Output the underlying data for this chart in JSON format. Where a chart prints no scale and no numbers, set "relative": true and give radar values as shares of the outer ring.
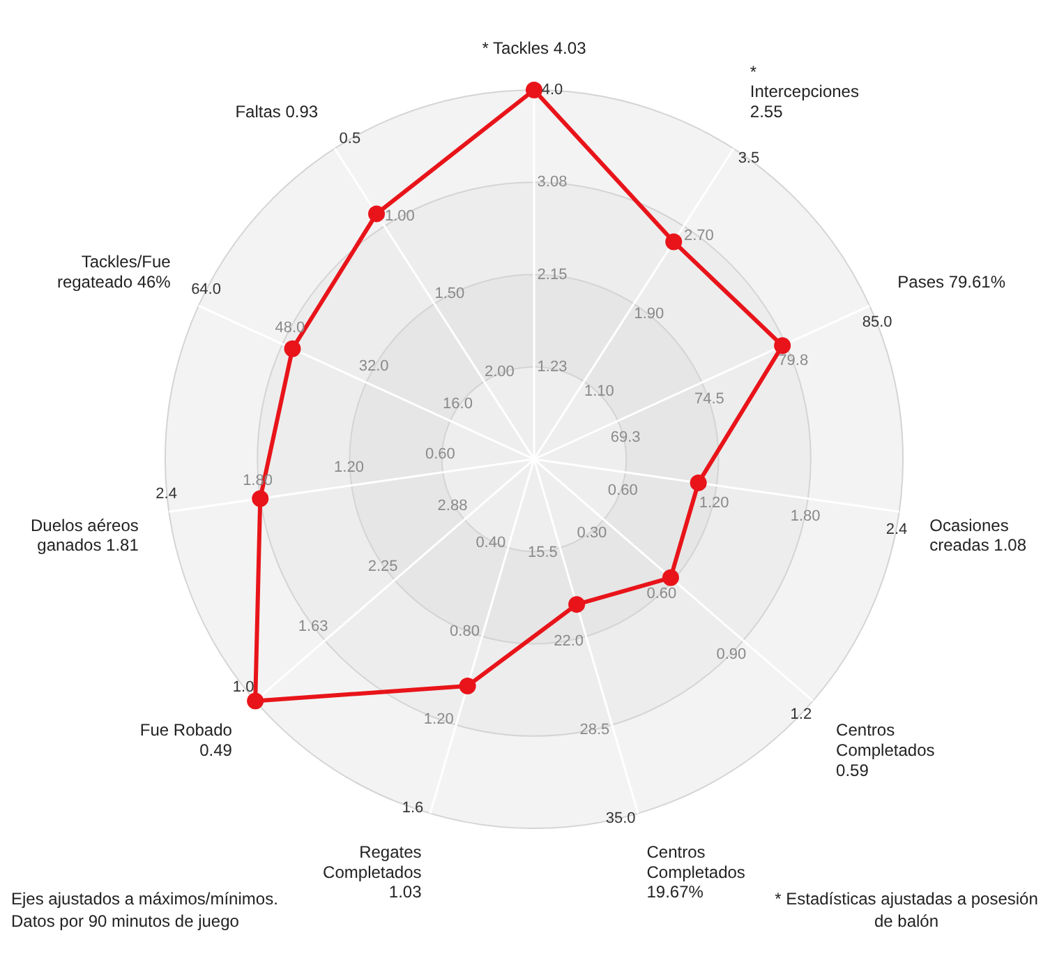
{
  "chart_data": {
    "type": "radar",
    "relative": true,
    "categories": [
      "* Tackles 4.03",
      "* Intercepciones 2.55",
      "Pases 79.61%",
      "Ocasiones creadas 1.08",
      "Centros Completados 0.59",
      "Centros Completados 19.67%",
      "Regates Completados 1.03",
      "Fue Robado 0.49",
      "Duelos aéreos ganados 1.81",
      "Tackles/Fue regateado 46%",
      "Faltas 0.93"
    ],
    "series": [
      {
        "color": "#e8141a",
        "values": [
          1.0,
          0.7,
          0.74,
          0.45,
          0.49,
          0.41,
          0.64,
          1.0,
          0.75,
          0.72,
          0.79
        ]
      }
    ],
    "marker": "circle",
    "legend": false,
    "grid": true,
    "annotations": [
      "1.23",
      "2.15",
      "3.08",
      "4.0",
      "1.10",
      "1.90",
      "2.70",
      "3.5",
      "69.3",
      "74.5",
      "79.8",
      "85.0",
      "0.60",
      "1.20",
      "1.80",
      "2.4",
      "0.30",
      "0.60",
      "0.90",
      "1.2",
      "15.5",
      "22.0",
      "28.5",
      "35.0",
      "0.40",
      "0.80",
      "1.20",
      "1.6",
      "2.88",
      "2.25",
      "1.63",
      "1.0",
      "0.60",
      "1.20",
      "1.80",
      "2.4",
      "16.0",
      "32.0",
      "48.0",
      "64.0",
      "2.00",
      "1.50",
      "1.00",
      "0.5",
      "Ejes ajustados a máximos/mínimos. Datos por 90 minutos de juego",
      "* Estadísticas ajustadas a posesión de balón"
    ]
  }
}
